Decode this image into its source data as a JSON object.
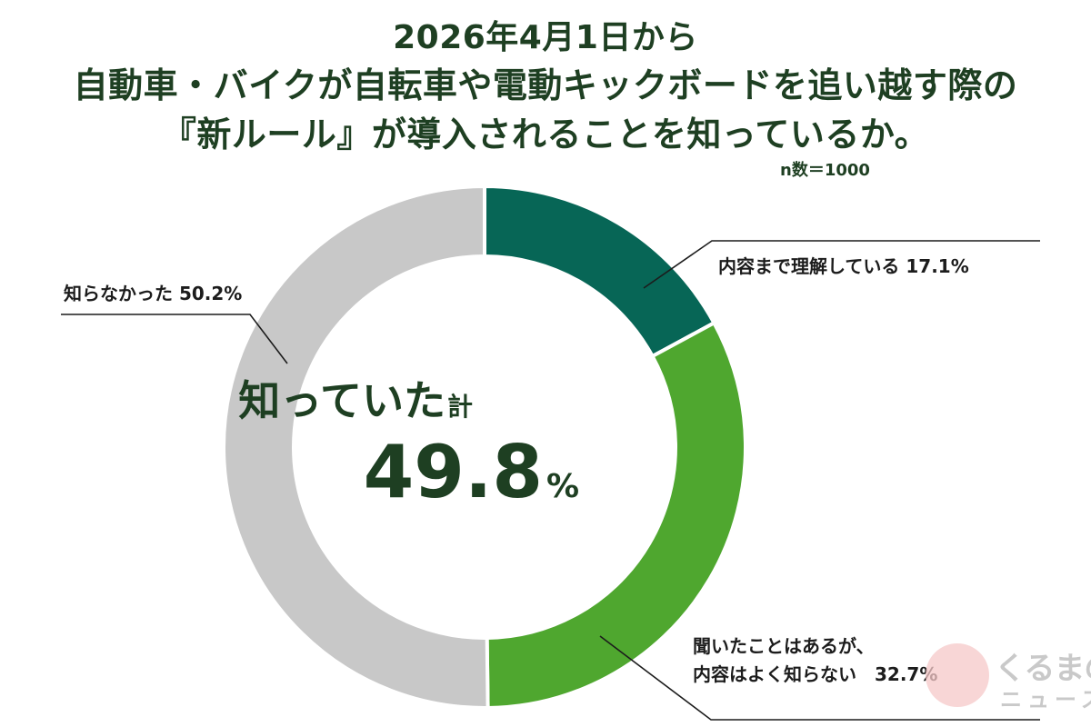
{
  "title": {
    "line1": "2026年4月1日から",
    "line2": "自動車・バイクが自転車や電動キックボードを追い越す際の",
    "line3": "『新ルール』が導入されることを知っているか。"
  },
  "sample_size": "n数＝1000",
  "center": {
    "label": "知っていた",
    "label_suffix": "計",
    "value": "49.8",
    "unit": "%"
  },
  "logo": {
    "text_top": "くるまの",
    "text_bottom": "ニュース"
  },
  "colors": {
    "understand": "#076656",
    "heard": "#4fa72f",
    "unknown": "#c8c8c8",
    "title": "#1e3f22"
  },
  "chart_data": {
    "type": "pie",
    "title": "2026年4月1日から 自動車・バイクが自転車や電動キックボードを追い越す際の『新ルール』が導入されることを知っているか。",
    "slices": [
      {
        "label": "内容まで理解している",
        "value": 17.1,
        "color": "#076656"
      },
      {
        "label": "聞いたことはあるが、内容はよく知らない",
        "value": 32.7,
        "color": "#4fa72f"
      },
      {
        "label": "知らなかった",
        "value": 50.2,
        "color": "#c8c8c8"
      }
    ],
    "labels": {
      "understand": "内容まで理解している 17.1%",
      "heard_line1": "聞いたことはあるが、",
      "heard_line2": "内容はよく知らない　32.7%",
      "unknown": "知らなかった 50.2%"
    }
  }
}
